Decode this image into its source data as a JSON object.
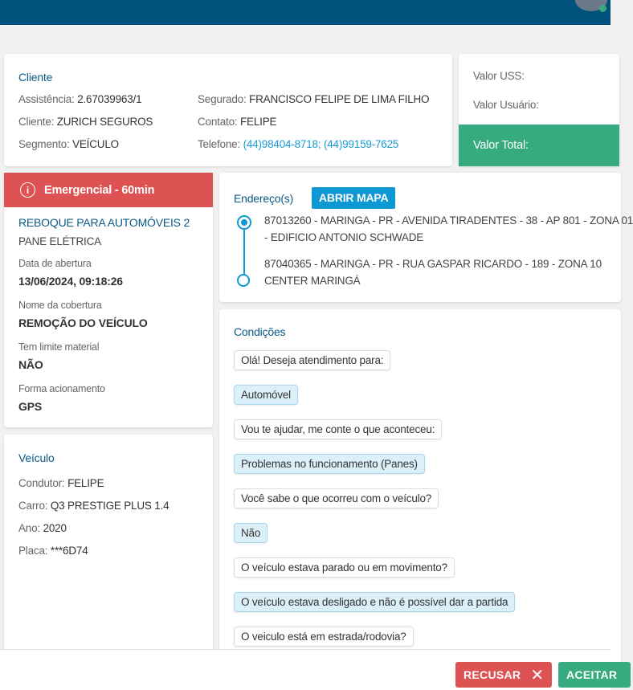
{
  "colors": {
    "header": "#00527c",
    "emergency": "#dd5252",
    "total": "#36ab7f",
    "accent": "#1a9ad6"
  },
  "cliente": {
    "title": "Cliente",
    "assistencia_label": "Assistência:",
    "assistencia": "2.67039963/1",
    "cliente_label": "Cliente:",
    "cliente": "ZURICH SEGUROS",
    "segmento_label": "Segmento:",
    "segmento": "VEÍCULO",
    "segurado_label": "Segurado:",
    "segurado": "FRANCISCO FELIPE DE LIMA FILHO",
    "contato_label": "Contato:",
    "contato": "FELIPE",
    "telefone_label": "Telefone:",
    "telefone": "(44)98404-8718; (44)99159-7625"
  },
  "valores": {
    "uss_label": "Valor USS:",
    "usuario_label": "Valor Usuário:",
    "total_label": "Valor Total:"
  },
  "servico": {
    "priority": "Emergencial - 60min",
    "service": "REBOQUE PARA AUTOMÓVEIS 2",
    "problem": "PANE ELÉTRICA",
    "fields": [
      {
        "label": "Data de abertura",
        "value": "13/06/2024, 09:18:26"
      },
      {
        "label": "Nome da cobertura",
        "value": "REMOÇÃO DO VEÍCULO"
      },
      {
        "label": "Tem limite material",
        "value": "NÃO"
      },
      {
        "label": "Forma acionamento",
        "value": "GPS"
      }
    ]
  },
  "enderecos": {
    "title": "Endereço(s)",
    "map_button": "ABRIR MAPA",
    "items": [
      {
        "l1": "87013260 - MARINGA - PR - AVENIDA TIRADENTES - 38 - AP 801 - ZONA 01",
        "l2": "- EDIFICIO ANTONIO SCHWADE"
      },
      {
        "l1": "87040365 - MARINGA - PR - RUA GASPAR RICARDO - 189 - ZONA 10",
        "l2": "CENTER MARINGÁ"
      }
    ]
  },
  "veiculo": {
    "title": "Veículo",
    "condutor_label": "Condutor:",
    "condutor": "FELIPE",
    "carro_label": "Carro:",
    "carro": "Q3 PRESTIGE PLUS 1.4",
    "ano_label": "Ano:",
    "ano": "2020",
    "placa_label": "Placa:",
    "placa": "***6D74"
  },
  "condicoes": {
    "title": "Condições",
    "messages": [
      {
        "text": "Olá! Deseja atendimento para:",
        "type": "q"
      },
      {
        "text": "Automóvel",
        "type": "a"
      },
      {
        "text": "Vou te ajudar, me conte o que aconteceu:",
        "type": "q"
      },
      {
        "text": "Problemas no funcionamento (Panes)",
        "type": "a"
      },
      {
        "text": "Você sabe o que ocorreu com o veículo?",
        "type": "q"
      },
      {
        "text": "Não",
        "type": "a"
      },
      {
        "text": "O veículo estava parado ou em movimento?",
        "type": "q"
      },
      {
        "text": "O veículo estava desligado e não é possível dar a partida",
        "type": "a"
      },
      {
        "text": "O veiculo está em estrada/rodovia?",
        "type": "q"
      }
    ]
  },
  "actions": {
    "reject": "RECUSAR",
    "accept": "ACEITAR"
  }
}
